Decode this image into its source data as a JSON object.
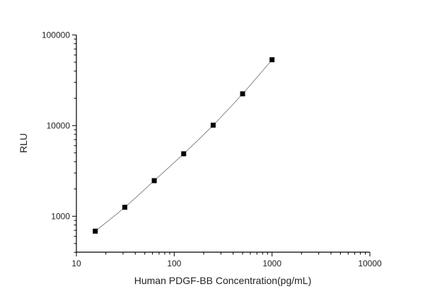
{
  "chart_data": {
    "type": "scatter",
    "title": "",
    "xlabel": "Human PDGF-BB Concentration(pg/mL)",
    "ylabel": "RLU",
    "x_scale": "log",
    "y_scale": "log",
    "xlim": [
      10,
      10000
    ],
    "ylim": [
      400,
      100000
    ],
    "x_ticks": [
      "10",
      "100",
      "1000",
      "10000"
    ],
    "y_ticks": [
      "1000",
      "10000",
      "100000"
    ],
    "grid": false,
    "series": [
      {
        "x": [
          15.6,
          31.25,
          62.5,
          125,
          250,
          500,
          1000
        ],
        "y": [
          685,
          1257,
          2470,
          4890,
          10100,
          22400,
          53300
        ],
        "marker": "square",
        "marker_color": "#000000",
        "line_color": "#888888",
        "fit_line": true
      }
    ]
  }
}
